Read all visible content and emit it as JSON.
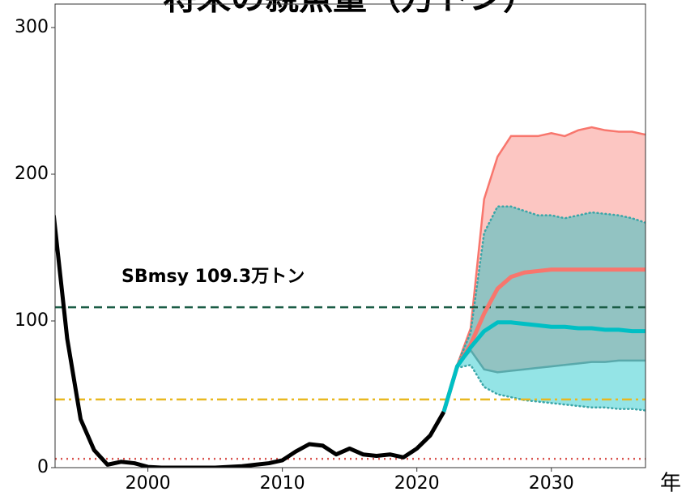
{
  "chart_data": {
    "type": "line",
    "title": "将来の親魚量（万トン）",
    "x_label": "年",
    "annotation": "SBmsy 109.3万トン",
    "xlim": [
      1993.1,
      2037
    ],
    "ylim": [
      0,
      316
    ],
    "xticks": [
      2000,
      2010,
      2020,
      2030
    ],
    "yticks": [
      0,
      100,
      200,
      300
    ],
    "grid": false,
    "bands": [
      {
        "color": "#f8766d",
        "x": [
          2023,
          2024,
          2025,
          2026,
          2027,
          2028,
          2029,
          2030,
          2031,
          2032,
          2033,
          2034,
          2035,
          2036,
          2037
        ],
        "upper": [
          70,
          95,
          183,
          212,
          226,
          226,
          226,
          228,
          226,
          230,
          232,
          230,
          229,
          229,
          227
        ],
        "lower": [
          69,
          80,
          67,
          65,
          66,
          67,
          68,
          69,
          70,
          71,
          72,
          72,
          73,
          73,
          73
        ]
      },
      {
        "color": "#00bfc4",
        "x": [
          2023,
          2024,
          2025,
          2026,
          2027,
          2028,
          2029,
          2030,
          2031,
          2032,
          2033,
          2034,
          2035,
          2036,
          2037
        ],
        "upper": [
          70,
          92,
          160,
          178,
          178,
          175,
          172,
          172,
          170,
          172,
          174,
          173,
          172,
          170,
          167
        ],
        "lower": [
          68,
          70,
          55,
          50,
          48,
          46,
          45,
          44,
          43,
          42,
          41,
          41,
          40,
          40,
          39
        ]
      }
    ],
    "hlines": [
      {
        "value": 109.3,
        "color": "#1a5c45",
        "style": "dashed"
      },
      {
        "value": 46.5,
        "color": "#e8b820",
        "style": "dashdot"
      },
      {
        "value": 6,
        "color": "#d9534f",
        "style": "dotted"
      }
    ],
    "series": [
      {
        "color": "#f8766d",
        "width": 5,
        "x": [
          2022,
          2023,
          2024,
          2025,
          2026,
          2027,
          2028,
          2029,
          2030,
          2031,
          2032,
          2033,
          2034,
          2035,
          2036,
          2037
        ],
        "values": [
          38,
          69,
          84,
          105,
          122,
          130,
          133,
          134,
          135,
          135,
          135,
          135,
          135,
          135,
          135,
          135
        ]
      },
      {
        "color": "#00bfc4",
        "width": 5,
        "x": [
          2022,
          2023,
          2024,
          2025,
          2026,
          2027,
          2028,
          2029,
          2030,
          2031,
          2032,
          2033,
          2034,
          2035,
          2036,
          2037
        ],
        "values": [
          38,
          69,
          82,
          93,
          99,
          99,
          98,
          97,
          96,
          96,
          95,
          95,
          94,
          94,
          93,
          93
        ]
      },
      {
        "color": "#000000",
        "width": 5,
        "x": [
          1993,
          1994,
          1995,
          1996,
          1997,
          1998,
          1999,
          2000,
          2001,
          2002,
          2003,
          2004,
          2005,
          2006,
          2007,
          2008,
          2009,
          2010,
          2011,
          2012,
          2013,
          2014,
          2015,
          2016,
          2017,
          2018,
          2019,
          2020,
          2021,
          2022
        ],
        "values": [
          172,
          88,
          33,
          12,
          2,
          4,
          3,
          0.5,
          0,
          0,
          0,
          0,
          0,
          0.5,
          1,
          2,
          3,
          5,
          11,
          16,
          15,
          9,
          13,
          9,
          8,
          9,
          7,
          13,
          22,
          38
        ]
      }
    ]
  }
}
